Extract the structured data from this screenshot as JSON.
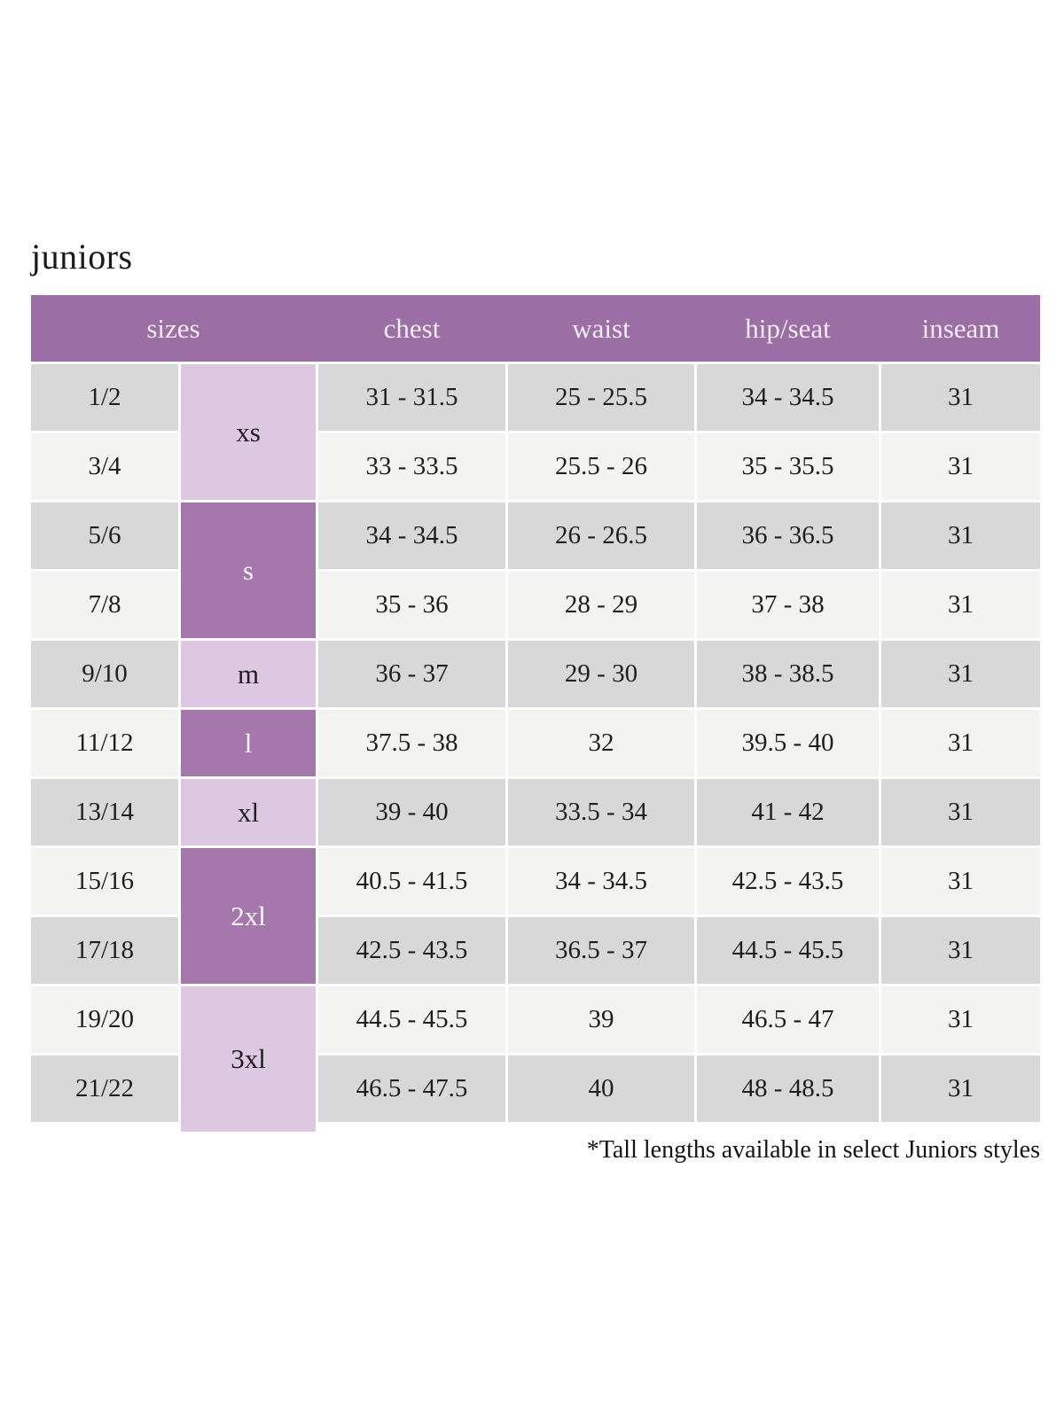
{
  "page": {
    "title": "juniors",
    "footnote": "*Tall lengths available in select Juniors styles"
  },
  "table": {
    "headers": [
      "sizes",
      "chest",
      "waist",
      "hip/seat",
      "inseam"
    ],
    "size_groups": [
      {
        "label": "xs",
        "shade": "light",
        "row_span": 2
      },
      {
        "label": "s",
        "shade": "dark",
        "row_span": 2
      },
      {
        "label": "m",
        "shade": "light",
        "row_span": 1
      },
      {
        "label": "l",
        "shade": "dark",
        "row_span": 1
      },
      {
        "label": "xl",
        "shade": "light",
        "row_span": 1
      },
      {
        "label": "2xl",
        "shade": "dark",
        "row_span": 2
      },
      {
        "label": "3xl",
        "shade": "light",
        "row_span": 2
      }
    ],
    "rows": [
      {
        "size": "1/2",
        "chest": "31 - 31.5",
        "waist": "25 - 25.5",
        "hip_seat": "34 - 34.5",
        "inseam": "31"
      },
      {
        "size": "3/4",
        "chest": "33 - 33.5",
        "waist": "25.5 - 26",
        "hip_seat": "35 - 35.5",
        "inseam": "31"
      },
      {
        "size": "5/6",
        "chest": "34 - 34.5",
        "waist": "26 - 26.5",
        "hip_seat": "36 - 36.5",
        "inseam": "31"
      },
      {
        "size": "7/8",
        "chest": "35 - 36",
        "waist": "28 - 29",
        "hip_seat": "37 - 38",
        "inseam": "31"
      },
      {
        "size": "9/10",
        "chest": "36 - 37",
        "waist": "29 - 30",
        "hip_seat": "38 - 38.5",
        "inseam": "31"
      },
      {
        "size": "11/12",
        "chest": "37.5 - 38",
        "waist": "32",
        "hip_seat": "39.5 - 40",
        "inseam": "31"
      },
      {
        "size": "13/14",
        "chest": "39 - 40",
        "waist": "33.5 - 34",
        "hip_seat": "41 - 42",
        "inseam": "31"
      },
      {
        "size": "15/16",
        "chest": "40.5 - 41.5",
        "waist": "34 - 34.5",
        "hip_seat": "42.5 - 43.5",
        "inseam": "31"
      },
      {
        "size": "17/18",
        "chest": "42.5 - 43.5",
        "waist": "36.5 - 37",
        "hip_seat": "44.5 - 45.5",
        "inseam": "31"
      },
      {
        "size": "19/20",
        "chest": "44.5 - 45.5",
        "waist": "39",
        "hip_seat": "46.5 - 47",
        "inseam": "31"
      },
      {
        "size": "21/22",
        "chest": "46.5 - 47.5",
        "waist": "40",
        "hip_seat": "48 - 48.5",
        "inseam": "31"
      }
    ],
    "colors": {
      "header_bg": "#9b6ea5",
      "header_text": "#f4edf5",
      "letter_dark_bg": "#a577ad",
      "letter_dark_text": "#fdf9fd",
      "letter_light_bg": "#dcc8e0",
      "row_gray": "#d9d8d8",
      "row_light": "#f3f3f2",
      "cell_text": "#1e1e1e"
    }
  }
}
